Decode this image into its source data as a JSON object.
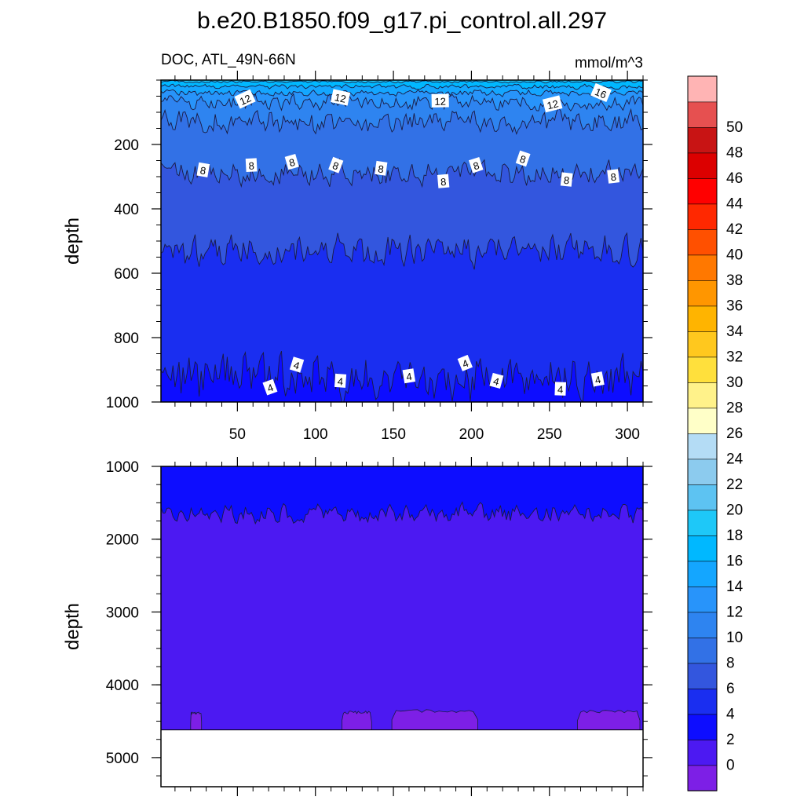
{
  "chart_data": {
    "type": "contour",
    "title": "b.e20.B1850.f09_g17.pi_control.all.297",
    "variable": "DOC, ATL_49N-66N",
    "units": "mmol/m^3",
    "x": {
      "label": "",
      "range": [
        1,
        310
      ],
      "ticks": [
        50,
        100,
        150,
        200,
        250,
        300
      ]
    },
    "panels": [
      {
        "name": "upper",
        "ylabel": "depth",
        "yrange": [
          0,
          1000
        ],
        "yticks": [
          200,
          400,
          600,
          800,
          1000
        ],
        "contour_levels": [
          {
            "level": 18,
            "mean_depth": 5,
            "amp": 3
          },
          {
            "level": 16,
            "mean_depth": 20,
            "amp": 6
          },
          {
            "level": 14,
            "mean_depth": 40,
            "amp": 8
          },
          {
            "level": 12,
            "mean_depth": 70,
            "amp": 18
          },
          {
            "level": 10,
            "mean_depth": 130,
            "amp": 28
          },
          {
            "level": 8,
            "mean_depth": 290,
            "amp": 30
          },
          {
            "level": 6,
            "mean_depth": 530,
            "amp": 40
          },
          {
            "level": 4,
            "mean_depth": 925,
            "amp": 60
          }
        ],
        "contour_labels": [
          {
            "text": "12",
            "x": 55,
            "depth": 60
          },
          {
            "text": "12",
            "x": 116,
            "depth": 55
          },
          {
            "text": "12",
            "x": 180,
            "depth": 65
          },
          {
            "text": "12",
            "x": 252,
            "depth": 75
          },
          {
            "text": "16",
            "x": 283,
            "depth": 40
          },
          {
            "text": "8",
            "x": 28,
            "depth": 280
          },
          {
            "text": "8",
            "x": 59,
            "depth": 265
          },
          {
            "text": "8",
            "x": 85,
            "depth": 255
          },
          {
            "text": "8",
            "x": 113,
            "depth": 265
          },
          {
            "text": "8",
            "x": 142,
            "depth": 275
          },
          {
            "text": "8",
            "x": 182,
            "depth": 315
          },
          {
            "text": "8",
            "x": 203,
            "depth": 265
          },
          {
            "text": "8",
            "x": 233,
            "depth": 245
          },
          {
            "text": "8",
            "x": 261,
            "depth": 310
          },
          {
            "text": "8",
            "x": 291,
            "depth": 300
          },
          {
            "text": "4",
            "x": 71,
            "depth": 955
          },
          {
            "text": "4",
            "x": 88,
            "depth": 885
          },
          {
            "text": "4",
            "x": 116,
            "depth": 935
          },
          {
            "text": "4",
            "x": 160,
            "depth": 920
          },
          {
            "text": "4",
            "x": 196,
            "depth": 880
          },
          {
            "text": "4",
            "x": 216,
            "depth": 935
          },
          {
            "text": "4",
            "x": 257,
            "depth": 960
          },
          {
            "text": "4",
            "x": 281,
            "depth": 930
          }
        ]
      },
      {
        "name": "lower",
        "ylabel": "depth",
        "yrange": [
          1000,
          5400
        ],
        "yticks": [
          1000,
          2000,
          3000,
          4000,
          5000
        ],
        "contour_levels": [
          {
            "level": 2,
            "mean_depth": 1650,
            "amp": 100
          }
        ],
        "below_zero_patches": [
          {
            "x_start": 117,
            "x_end": 136,
            "top_depth": 4380
          },
          {
            "x_start": 149,
            "x_end": 204,
            "top_depth": 4360
          },
          {
            "x_start": 268,
            "x_end": 308,
            "top_depth": 4370
          },
          {
            "x_start": 20,
            "x_end": 27,
            "top_depth": 4390
          }
        ],
        "no_data_below_depth": 4620
      }
    ],
    "colorbar": {
      "labels": [
        "0",
        "2",
        "4",
        "6",
        "8",
        "10",
        "12",
        "14",
        "16",
        "18",
        "20",
        "22",
        "24",
        "26",
        "28",
        "30",
        "32",
        "34",
        "36",
        "38",
        "40",
        "42",
        "44",
        "46",
        "48",
        "50"
      ],
      "colors": [
        "#7d1fe6",
        "#4c19f2",
        "#0d0dff",
        "#1a2ef0",
        "#3356de",
        "#3271e6",
        "#2e84f0",
        "#2894fa",
        "#14a6ff",
        "#00b8ff",
        "#1ec8f8",
        "#5dc3f2",
        "#8ccbee",
        "#b4dcf5",
        "#ffffc8",
        "#fff28a",
        "#ffe03c",
        "#ffc81e",
        "#ffb400",
        "#ff9600",
        "#ff7800",
        "#ff5000",
        "#ff2800",
        "#ff0000",
        "#dc0000",
        "#c81414",
        "#e65050",
        "#ffb4b4"
      ]
    }
  }
}
